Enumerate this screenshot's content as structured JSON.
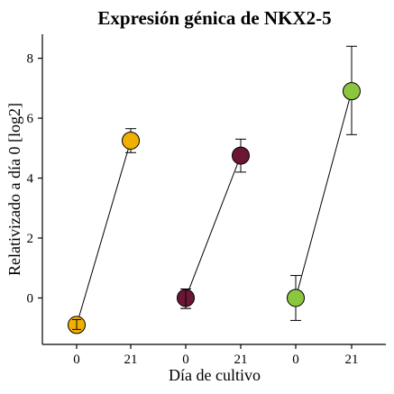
{
  "chart_data": {
    "type": "scatter",
    "title": "Expresión génica de NKX2-5",
    "xlabel": "Día de cultivo",
    "ylabel": "Relativizado a día 0 [log2]",
    "categories": [
      "0",
      "21",
      "0",
      "21",
      "0",
      "21"
    ],
    "ylim": [
      -1.55,
      8.8
    ],
    "yticks": [
      0,
      2,
      4,
      6,
      8
    ],
    "grid": false,
    "legend": "none",
    "series": [
      {
        "color": "#F0B000",
        "points": [
          {
            "category_index": 0,
            "y": -0.9,
            "err_low": -1.05,
            "err_high": -0.72
          },
          {
            "category_index": 1,
            "y": 5.25,
            "err_low": 4.85,
            "err_high": 5.65
          }
        ]
      },
      {
        "color": "#6B1635",
        "points": [
          {
            "category_index": 2,
            "y": 0.0,
            "err_low": -0.35,
            "err_high": 0.3
          },
          {
            "category_index": 3,
            "y": 4.75,
            "err_low": 4.2,
            "err_high": 5.3
          }
        ]
      },
      {
        "color": "#8CC63F",
        "points": [
          {
            "category_index": 4,
            "y": 0.0,
            "err_low": -0.75,
            "err_high": 0.75
          },
          {
            "category_index": 5,
            "y": 6.9,
            "err_low": 5.45,
            "err_high": 8.4
          }
        ]
      }
    ]
  }
}
